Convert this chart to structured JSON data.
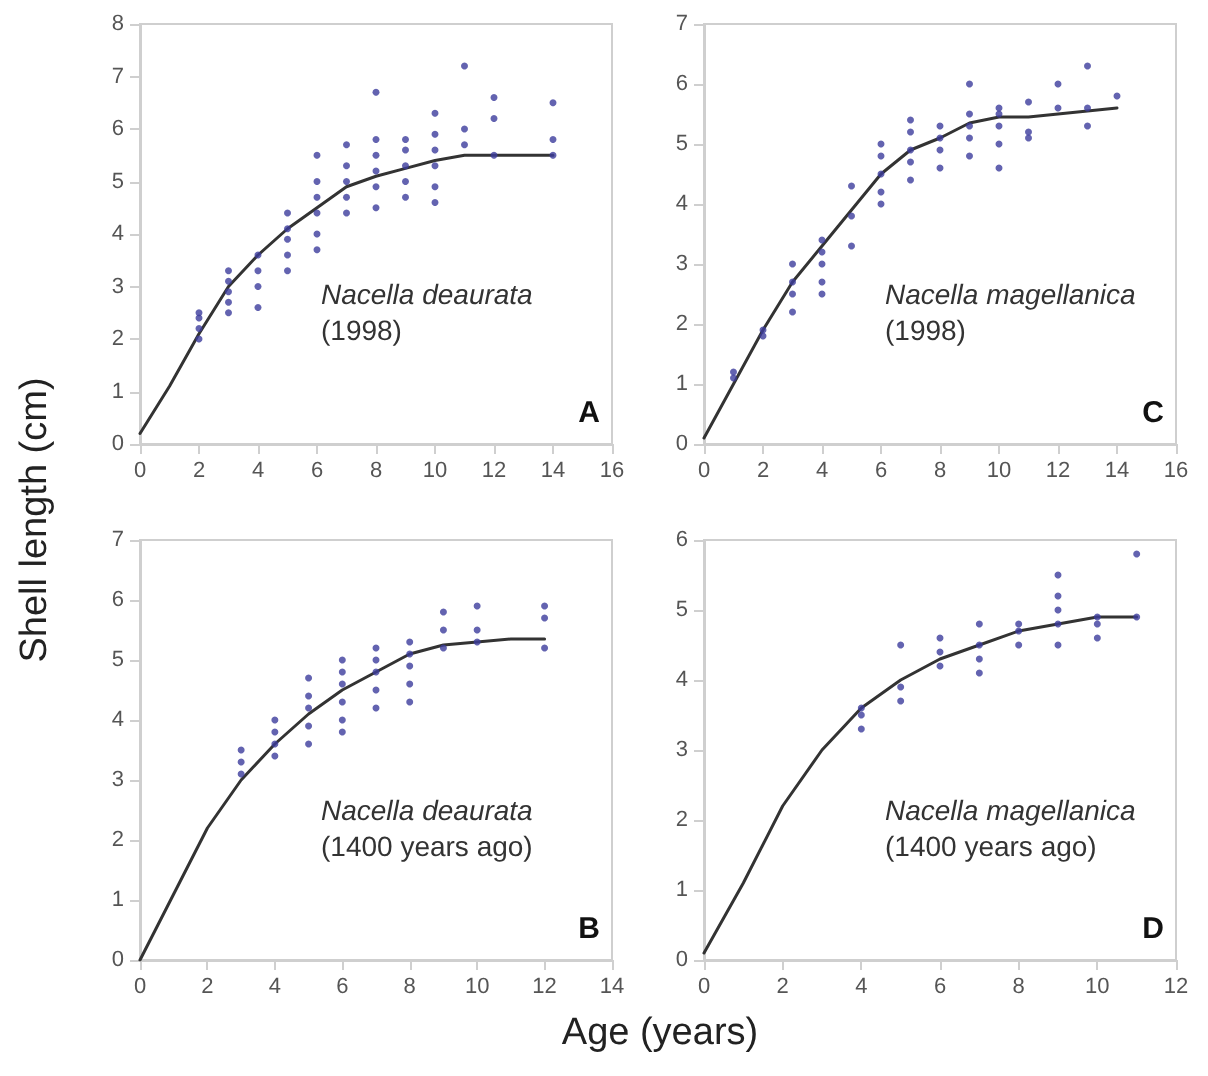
{
  "chart_data": [
    {
      "type": "scatter",
      "ylabel": "Shell length (cm)",
      "annotations": [
        "Nacella deaurata",
        "(1998)",
        "A"
      ],
      "xlim": [
        0,
        16
      ],
      "xticks": [
        0,
        2,
        4,
        6,
        8,
        10,
        12,
        14,
        16
      ],
      "ylim": [
        0,
        8
      ],
      "yticks": [
        0,
        1,
        2,
        3,
        4,
        5,
        6,
        7,
        8
      ],
      "series": [
        {
          "marker": "circle",
          "color": "#3c3c9c",
          "x": [
            2,
            2,
            2,
            2,
            3,
            3,
            3,
            3,
            3,
            4,
            4,
            4,
            4,
            5,
            5,
            5,
            5,
            5,
            6,
            6,
            6,
            6,
            6,
            6,
            7,
            7,
            7,
            7,
            7,
            8,
            8,
            8,
            8,
            8,
            8,
            9,
            9,
            9,
            9,
            9,
            10,
            10,
            10,
            10,
            10,
            10,
            11,
            11,
            11,
            12,
            12,
            12,
            14,
            14,
            14
          ],
          "values": [
            2.0,
            2.2,
            2.4,
            2.5,
            2.5,
            2.7,
            2.9,
            3.1,
            3.3,
            2.6,
            3.0,
            3.3,
            3.6,
            3.3,
            3.6,
            3.9,
            4.1,
            4.4,
            3.7,
            4.0,
            4.4,
            4.7,
            5.0,
            5.5,
            4.4,
            4.7,
            5.0,
            5.3,
            5.7,
            4.5,
            4.9,
            5.2,
            5.5,
            5.8,
            6.7,
            4.7,
            5.0,
            5.3,
            5.6,
            5.8,
            4.6,
            4.9,
            5.3,
            5.6,
            5.9,
            6.3,
            5.7,
            6.0,
            7.2,
            5.5,
            6.2,
            6.6,
            5.5,
            5.8,
            6.5
          ]
        },
        {
          "type": "line",
          "marker": "none",
          "color": "#333333",
          "x": [
            0,
            1,
            2,
            3,
            4,
            5,
            6,
            7,
            8,
            9,
            10,
            11,
            12,
            14
          ],
          "values": [
            0.2,
            1.1,
            2.1,
            3.0,
            3.6,
            4.1,
            4.5,
            4.9,
            5.1,
            5.25,
            5.4,
            5.5,
            5.5,
            5.5
          ]
        }
      ]
    },
    {
      "type": "scatter",
      "annotations": [
        "Nacella magellanica",
        "(1998)",
        "C"
      ],
      "xlim": [
        0,
        16
      ],
      "xticks": [
        0,
        2,
        4,
        6,
        8,
        10,
        12,
        14,
        16
      ],
      "ylim": [
        0,
        7
      ],
      "yticks": [
        0,
        1,
        2,
        3,
        4,
        5,
        6,
        7
      ],
      "series": [
        {
          "marker": "circle",
          "color": "#3c3c9c",
          "x": [
            1,
            1,
            2,
            2,
            3,
            3,
            3,
            3,
            4,
            4,
            4,
            4,
            4,
            5,
            5,
            5,
            6,
            6,
            6,
            6,
            6,
            7,
            7,
            7,
            7,
            7,
            8,
            8,
            8,
            8,
            9,
            9,
            9,
            9,
            9,
            10,
            10,
            10,
            10,
            10,
            11,
            11,
            11,
            12,
            12,
            13,
            13,
            13,
            14
          ],
          "values": [
            1.1,
            1.2,
            1.8,
            1.9,
            2.2,
            2.5,
            2.7,
            3.0,
            2.5,
            2.7,
            3.0,
            3.2,
            3.4,
            3.3,
            3.8,
            4.3,
            4.0,
            4.2,
            4.5,
            4.8,
            5.0,
            4.4,
            4.7,
            4.9,
            5.2,
            5.4,
            4.6,
            4.9,
            5.1,
            5.3,
            4.8,
            5.1,
            5.3,
            5.5,
            6.0,
            4.6,
            5.0,
            5.3,
            5.5,
            5.6,
            5.1,
            5.2,
            5.7,
            5.6,
            6.0,
            5.3,
            5.6,
            6.3,
            5.8
          ]
        },
        {
          "type": "line",
          "marker": "none",
          "color": "#333333",
          "x": [
            0,
            1,
            2,
            3,
            4,
            5,
            6,
            7,
            8,
            9,
            10,
            11,
            12,
            14
          ],
          "values": [
            0.1,
            1.0,
            1.9,
            2.7,
            3.3,
            3.9,
            4.5,
            4.9,
            5.1,
            5.35,
            5.45,
            5.45,
            5.5,
            5.6
          ]
        }
      ]
    },
    {
      "type": "scatter",
      "xlabel": "Age (years)",
      "annotations": [
        "Nacella deaurata",
        "(1400 years ago)",
        "B"
      ],
      "xlim": [
        0,
        14
      ],
      "xticks": [
        0,
        2,
        4,
        6,
        8,
        10,
        12,
        14
      ],
      "ylim": [
        0,
        7
      ],
      "yticks": [
        0,
        1,
        2,
        3,
        4,
        5,
        6,
        7
      ],
      "series": [
        {
          "marker": "circle",
          "color": "#3c3c9c",
          "x": [
            3,
            3,
            3,
            4,
            4,
            4,
            4,
            5,
            5,
            5,
            5,
            5,
            6,
            6,
            6,
            6,
            6,
            6,
            7,
            7,
            7,
            7,
            7,
            8,
            8,
            8,
            8,
            8,
            9,
            9,
            9,
            10,
            10,
            10,
            12,
            12,
            12
          ],
          "values": [
            3.1,
            3.3,
            3.5,
            3.4,
            3.6,
            3.8,
            4.0,
            3.6,
            3.9,
            4.2,
            4.4,
            4.7,
            3.8,
            4.0,
            4.3,
            4.6,
            4.8,
            5.0,
            4.2,
            4.5,
            4.8,
            5.0,
            5.2,
            4.3,
            4.6,
            4.9,
            5.1,
            5.3,
            5.2,
            5.5,
            5.8,
            5.3,
            5.5,
            5.9,
            5.2,
            5.7,
            5.9
          ]
        },
        {
          "type": "line",
          "marker": "none",
          "color": "#333333",
          "x": [
            0,
            1,
            2,
            3,
            4,
            5,
            6,
            7,
            8,
            9,
            10,
            11,
            12
          ],
          "values": [
            0.0,
            1.1,
            2.2,
            3.0,
            3.6,
            4.1,
            4.5,
            4.8,
            5.1,
            5.25,
            5.3,
            5.35,
            5.35
          ]
        }
      ]
    },
    {
      "type": "scatter",
      "annotations": [
        "Nacella magellanica",
        "(1400 years ago)",
        "D"
      ],
      "xlim": [
        0,
        12
      ],
      "xticks": [
        0,
        2,
        4,
        6,
        8,
        10,
        12
      ],
      "ylim": [
        0,
        6
      ],
      "yticks": [
        0,
        1,
        2,
        3,
        4,
        5,
        6
      ],
      "series": [
        {
          "marker": "circle",
          "color": "#3c3c9c",
          "x": [
            4,
            4,
            4,
            5,
            5,
            5,
            6,
            6,
            6,
            7,
            7,
            7,
            7,
            8,
            8,
            8,
            9,
            9,
            9,
            9,
            9,
            10,
            10,
            10,
            11,
            11
          ],
          "values": [
            3.3,
            3.5,
            3.6,
            3.7,
            3.9,
            4.5,
            4.2,
            4.4,
            4.6,
            4.1,
            4.3,
            4.5,
            4.8,
            4.5,
            4.7,
            4.8,
            4.5,
            4.8,
            5.0,
            5.2,
            5.5,
            4.6,
            4.8,
            4.9,
            4.9,
            5.8
          ]
        },
        {
          "type": "line",
          "marker": "none",
          "color": "#333333",
          "x": [
            0,
            1,
            2,
            3,
            4,
            5,
            6,
            7,
            8,
            9,
            10,
            11
          ],
          "values": [
            0.1,
            1.1,
            2.2,
            3.0,
            3.6,
            4.0,
            4.3,
            4.5,
            4.7,
            4.8,
            4.9,
            4.9
          ]
        }
      ]
    }
  ]
}
